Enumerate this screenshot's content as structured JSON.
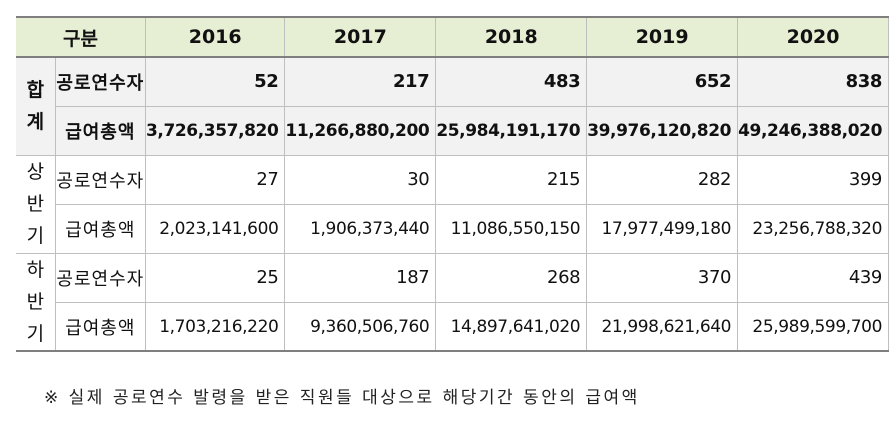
{
  "header": {
    "category": "구분",
    "years": [
      "2016",
      "2017",
      "2018",
      "2019",
      "2020"
    ]
  },
  "groups": [
    {
      "name": "합계",
      "chars": [
        "합",
        "계"
      ],
      "rows": [
        {
          "label": "공로연수자",
          "values": [
            "52",
            "217",
            "483",
            "652",
            "838"
          ]
        },
        {
          "label": "급여총액",
          "values": [
            "3,726,357,820",
            "11,266,880,200",
            "25,984,191,170",
            "39,976,120,820",
            "49,246,388,020"
          ]
        }
      ]
    },
    {
      "name": "상반기",
      "chars": [
        "상",
        "반",
        "기"
      ],
      "rows": [
        {
          "label": "공로연수자",
          "values": [
            "27",
            "30",
            "215",
            "282",
            "399"
          ]
        },
        {
          "label": "급여총액",
          "values": [
            "2,023,141,600",
            "1,906,373,440",
            "11,086,550,150",
            "17,977,499,180",
            "23,256,788,320"
          ]
        }
      ]
    },
    {
      "name": "하반기",
      "chars": [
        "하",
        "반",
        "기"
      ],
      "rows": [
        {
          "label": "공로연수자",
          "values": [
            "25",
            "187",
            "268",
            "370",
            "439"
          ]
        },
        {
          "label": "급여총액",
          "values": [
            "1,703,216,220",
            "9,360,506,760",
            "14,897,641,020",
            "21,998,621,640",
            "25,989,599,700"
          ]
        }
      ]
    }
  ],
  "note": "※ 실제 공로연수 발령을 받은 직원들 대상으로 해당기간 동안의 급여액"
}
